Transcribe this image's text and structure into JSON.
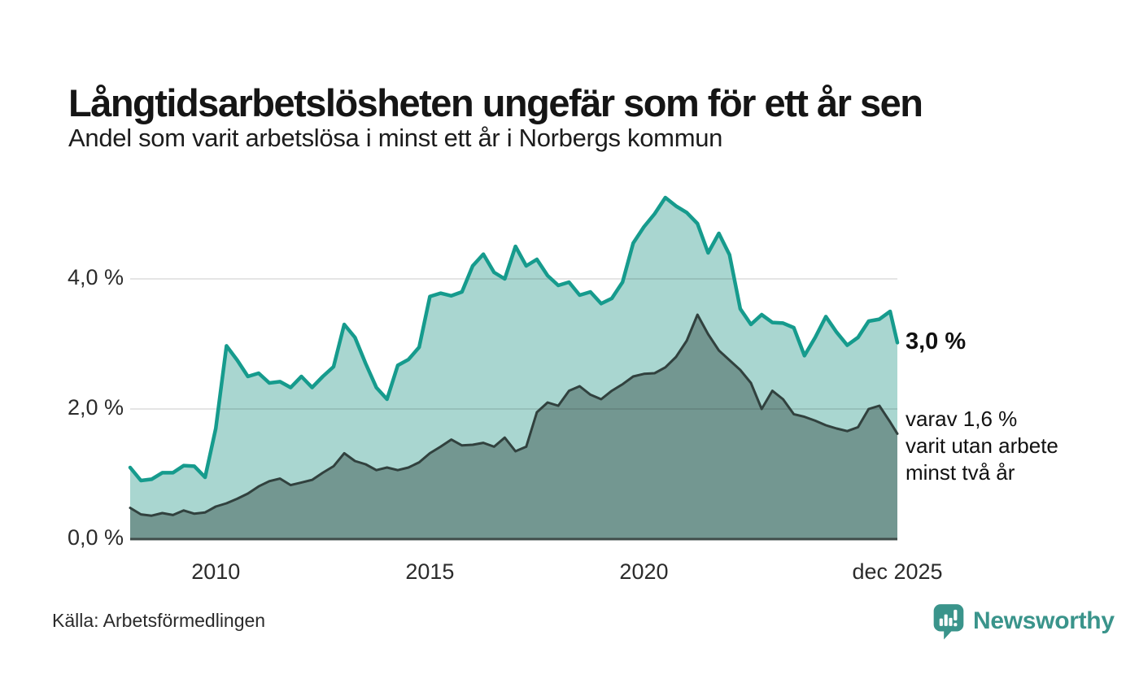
{
  "header": {
    "title": "Långtidsarbetslösheten ungefär som för ett år sen",
    "subtitle": "Andel som varit arbetslösa i minst ett år i Norbergs kommun"
  },
  "chart_data": {
    "type": "area",
    "title": "Långtidsarbetslösheten ungefär som för ett år sen",
    "subtitle": "Andel som varit arbetslösa i minst ett år i Norbergs kommun",
    "xlim": [
      2008,
      2025.92
    ],
    "ylim": [
      0,
      5.5
    ],
    "grid": true,
    "legend_position": "right-annotations",
    "x": [
      2008.0,
      2008.25,
      2008.5,
      2008.75,
      2009.0,
      2009.25,
      2009.5,
      2009.75,
      2010.0,
      2010.25,
      2010.5,
      2010.75,
      2011.0,
      2011.25,
      2011.5,
      2011.75,
      2012.0,
      2012.25,
      2012.5,
      2012.75,
      2013.0,
      2013.25,
      2013.5,
      2013.75,
      2014.0,
      2014.25,
      2014.5,
      2014.75,
      2015.0,
      2015.25,
      2015.5,
      2015.75,
      2016.0,
      2016.25,
      2016.5,
      2016.75,
      2017.0,
      2017.25,
      2017.5,
      2017.75,
      2018.0,
      2018.25,
      2018.5,
      2018.75,
      2019.0,
      2019.25,
      2019.5,
      2019.75,
      2020.0,
      2020.25,
      2020.5,
      2020.75,
      2021.0,
      2021.25,
      2021.5,
      2021.75,
      2022.0,
      2022.25,
      2022.5,
      2022.75,
      2023.0,
      2023.25,
      2023.5,
      2023.75,
      2024.0,
      2024.25,
      2024.5,
      2024.75,
      2025.0,
      2025.25,
      2025.5,
      2025.75,
      2025.92
    ],
    "series": [
      {
        "name": "Arbetslösa minst ett år",
        "stroke": "#169b8d",
        "fill": "#a9d6d0",
        "end_value_pct": 3.0,
        "values": [
          1.1,
          0.9,
          0.92,
          1.02,
          1.02,
          1.13,
          1.12,
          0.95,
          1.7,
          2.97,
          2.75,
          2.5,
          2.55,
          2.4,
          2.42,
          2.33,
          2.5,
          2.33,
          2.5,
          2.65,
          3.3,
          3.1,
          2.7,
          2.33,
          2.15,
          2.67,
          2.76,
          2.95,
          3.73,
          3.78,
          3.74,
          3.8,
          4.2,
          4.38,
          4.1,
          4.0,
          4.5,
          4.2,
          4.3,
          4.05,
          3.9,
          3.95,
          3.75,
          3.8,
          3.62,
          3.7,
          3.95,
          4.55,
          4.8,
          5.0,
          5.25,
          5.12,
          5.02,
          4.85,
          4.4,
          4.7,
          4.37,
          3.54,
          3.3,
          3.45,
          3.33,
          3.32,
          3.25,
          2.82,
          3.1,
          3.42,
          3.18,
          2.98,
          3.1,
          3.35,
          3.38,
          3.5,
          3.02
        ]
      },
      {
        "name": "varav utan arbete minst två år",
        "stroke": "#31413e",
        "fill": "#739791",
        "end_value_pct": 1.6,
        "values": [
          0.48,
          0.38,
          0.36,
          0.4,
          0.37,
          0.44,
          0.39,
          0.41,
          0.5,
          0.55,
          0.62,
          0.7,
          0.81,
          0.89,
          0.93,
          0.83,
          0.87,
          0.91,
          1.02,
          1.12,
          1.32,
          1.2,
          1.15,
          1.06,
          1.1,
          1.06,
          1.1,
          1.18,
          1.32,
          1.42,
          1.53,
          1.44,
          1.45,
          1.48,
          1.42,
          1.56,
          1.35,
          1.42,
          1.95,
          2.1,
          2.05,
          2.28,
          2.35,
          2.22,
          2.15,
          2.28,
          2.38,
          2.5,
          2.54,
          2.55,
          2.64,
          2.8,
          3.05,
          3.45,
          3.15,
          2.9,
          2.75,
          2.6,
          2.4,
          2.0,
          2.28,
          2.15,
          1.92,
          1.88,
          1.82,
          1.75,
          1.7,
          1.66,
          1.72,
          2.0,
          2.05,
          1.8,
          1.62
        ]
      }
    ],
    "y_ticks": [
      {
        "value": 0,
        "label": "0,0 %"
      },
      {
        "value": 2,
        "label": "2,0 %"
      },
      {
        "value": 4,
        "label": "4,0 %"
      }
    ],
    "x_ticks": [
      {
        "value": 2010,
        "label": "2010"
      },
      {
        "value": 2015,
        "label": "2015"
      },
      {
        "value": 2020,
        "label": "2020"
      },
      {
        "value": 2025.92,
        "label": "dec 2025"
      }
    ],
    "annotations": {
      "end_value": "3,0 %",
      "note": "varav 1,6 %\nvarit utan arbete\nminst två år"
    }
  },
  "footer": {
    "source": "Källa: Arbetsförmedlingen",
    "brand": "Newsworthy"
  },
  "colors": {
    "accent_teal": "#169b8d",
    "light_fill": "#a9d6d0",
    "dark_fill": "#739791",
    "dark_stroke": "#31413e",
    "baseline": "#3f4c49",
    "gridline": "rgba(0,0,0,0.10)",
    "brand_teal": "#3a948b",
    "text": "#151515"
  }
}
